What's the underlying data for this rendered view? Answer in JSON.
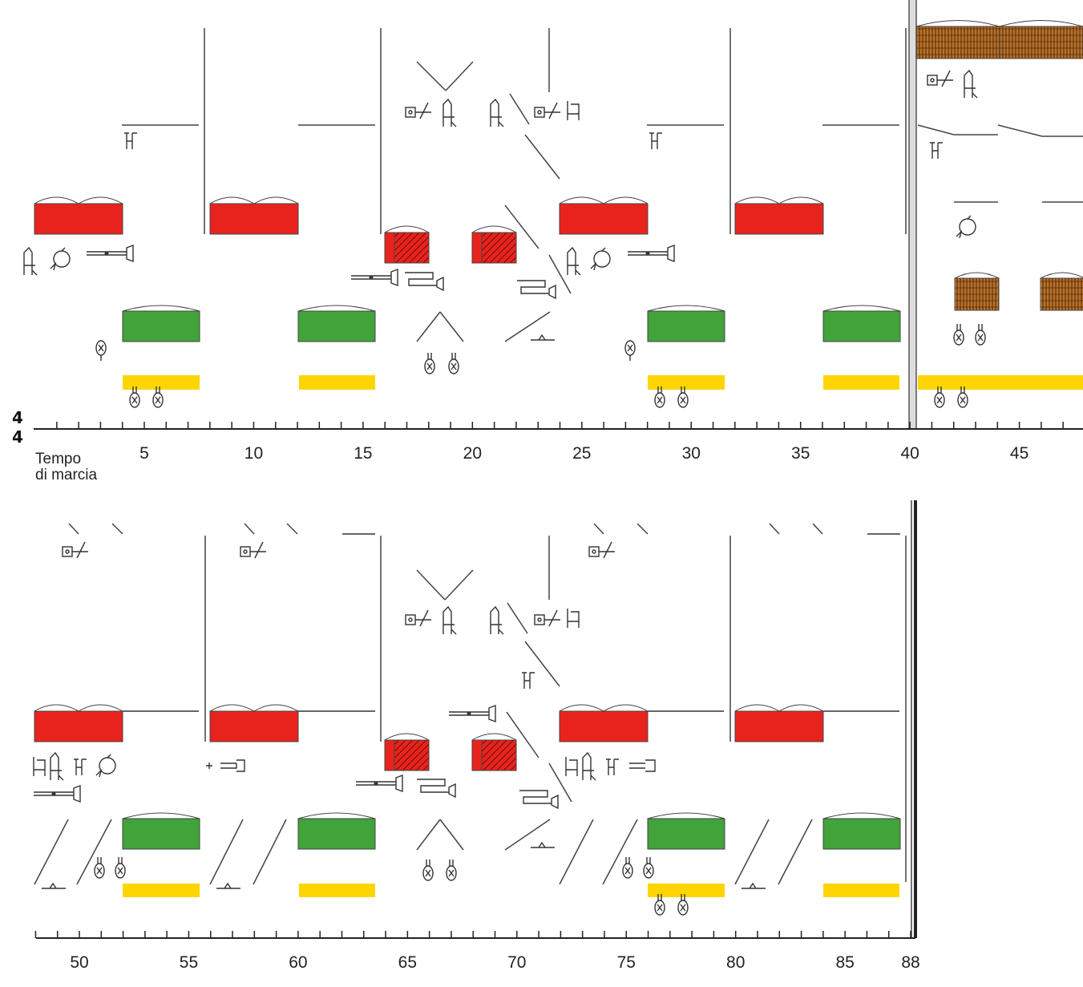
{
  "timeline": {
    "time_signature": {
      "top": "4",
      "bottom": "4"
    },
    "tempo_label_line1": "Tempo",
    "tempo_label_line2": "di marcia",
    "row1_ticks": [
      "5",
      "10",
      "15",
      "20",
      "25",
      "30",
      "35",
      "40",
      "45"
    ],
    "row2_ticks": [
      "50",
      "55",
      "60",
      "65",
      "70",
      "75",
      "80",
      "85",
      "88"
    ]
  },
  "colors": {
    "red_block": "#e8231d",
    "green_block": "#41a33a",
    "yellow_bar": "#ffd500",
    "brown_block": "#8a4a12",
    "line": "#333333"
  },
  "legend_blocks": {
    "red": "red-block",
    "green": "green-block",
    "yellow": "yellow-bar",
    "brown": "brown-block"
  }
}
